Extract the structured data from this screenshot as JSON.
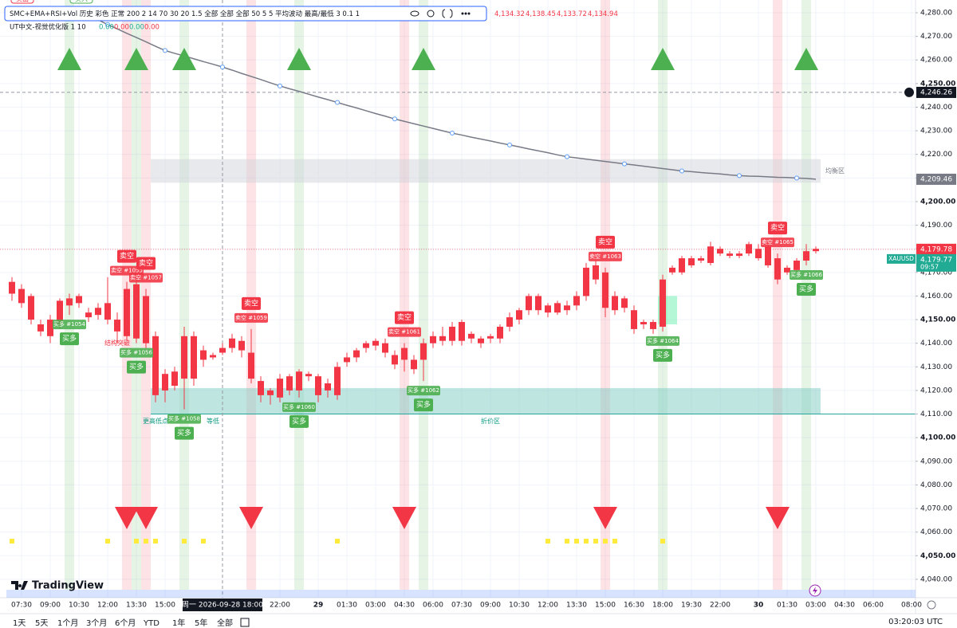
{
  "top_badges": {
    "sell": "卖出",
    "buy": "买入"
  },
  "legend": {
    "indicator": "SMC+EMA+RSI+Vol 历史 彩色 正常 200 2 14 70 30 20 1.5 全部 全部 全部 50 5 5 平均波动 最高/最低 3 0.1 1",
    "ohlc": [
      "4,134.32",
      "4,138.45",
      "4,133.72",
      "4,134.94"
    ],
    "indicator2": "UT中文-视觉优化版 1 10",
    "values2": [
      "0.00",
      "0.00",
      "0.00",
      "0.00"
    ]
  },
  "logo": "TradingView",
  "toolbar": {
    "ranges": [
      "1天",
      "5天",
      "1个月",
      "3个月",
      "6个月",
      "YTD",
      "1年",
      "5年",
      "全部"
    ],
    "clock": "03:20:03 UTC"
  },
  "chart_data": {
    "type": "candlestick",
    "color": "#f23645",
    "grid": true,
    "categories": [
      null,
      "07:30",
      null,
      null,
      "09:00",
      null,
      null,
      "10:30",
      null,
      null,
      "12:00",
      null,
      null,
      "13:30",
      null,
      null,
      "15:00",
      null,
      null,
      null,
      null,
      null,
      null,
      null,
      null,
      null,
      null,
      null,
      "22:00",
      null,
      null,
      null,
      "29",
      null,
      null,
      "01:30",
      null,
      null,
      "03:00",
      null,
      null,
      "04:30",
      null,
      null,
      "06:00",
      null,
      null,
      "07:30",
      null,
      null,
      "09:00",
      null,
      null,
      "10:30",
      null,
      null,
      "12:00",
      null,
      null,
      "13:30",
      null,
      null,
      "15:00",
      null,
      null,
      "16:30",
      null,
      null,
      "18:00",
      null,
      null,
      "19:30",
      null,
      null,
      "22:00",
      null,
      null,
      null,
      "30",
      null,
      null,
      "01:30",
      null,
      null,
      "03:00",
      null,
      null,
      "04:30",
      null,
      null,
      "06:00",
      null,
      null,
      null,
      "08:00"
    ],
    "candles": [
      [
        4166,
        4168,
        4158,
        4161
      ],
      [
        4163,
        4165,
        4155,
        4157
      ],
      [
        4160,
        4161,
        4148,
        4150
      ],
      [
        4148,
        4150,
        4143,
        4145
      ],
      [
        4150,
        4152,
        4140,
        4143
      ],
      [
        4158,
        4159,
        4146,
        4148
      ],
      [
        4159,
        4161,
        4152,
        4156
      ],
      [
        4160,
        4161,
        4155,
        4157
      ],
      [
        4153,
        4155,
        4149,
        4151
      ],
      [
        4155,
        4157,
        4150,
        4152
      ],
      [
        4157,
        4168,
        4148,
        4150
      ],
      [
        4150,
        4153,
        4140,
        4145
      ],
      [
        4163,
        4166,
        4141,
        4143
      ],
      [
        4165,
        4168,
        4140,
        4142
      ],
      [
        4160,
        4163,
        4138,
        4140
      ],
      [
        4143,
        4145,
        4115,
        4118
      ],
      [
        4127,
        4129,
        4115,
        4120
      ],
      [
        4128,
        4130,
        4120,
        4122
      ],
      [
        4143,
        4147,
        4112,
        4125
      ],
      [
        4143,
        4145,
        4122,
        4125
      ],
      [
        4137,
        4139,
        4130,
        4133
      ],
      [
        4135,
        4136,
        4133,
        4134
      ],
      [
        4138,
        4140,
        4135,
        4136
      ],
      [
        4142,
        4144,
        4136,
        4138
      ],
      [
        4141,
        4143,
        4134,
        4137
      ],
      [
        4136,
        4146,
        4123,
        4125
      ],
      [
        4124,
        4126,
        4115,
        4118
      ],
      [
        4120,
        4121,
        4114,
        4118
      ],
      [
        4125,
        4127,
        4115,
        4117
      ],
      [
        4126,
        4127,
        4118,
        4120
      ],
      [
        4128,
        4129,
        4117,
        4120
      ],
      [
        4127,
        4128,
        4124,
        4126
      ],
      [
        4126,
        4127,
        4115,
        4118
      ],
      [
        4123,
        4125,
        4117,
        4120
      ],
      [
        4130,
        4132,
        4116,
        4118
      ],
      [
        4134,
        4136,
        4130,
        4132
      ],
      [
        4137,
        4138,
        4132,
        4134
      ],
      [
        4140,
        4141,
        4136,
        4138
      ],
      [
        4141,
        4142,
        4137,
        4139
      ],
      [
        4140,
        4142,
        4134,
        4136
      ],
      [
        4135,
        4137,
        4129,
        4131
      ],
      [
        4138,
        4140,
        4128,
        4133
      ],
      [
        4133,
        4135,
        4127,
        4129
      ],
      [
        4140,
        4142,
        4124,
        4133
      ],
      [
        4143,
        4145,
        4138,
        4140
      ],
      [
        4143,
        4147,
        4139,
        4141
      ],
      [
        4147,
        4149,
        4139,
        4141
      ],
      [
        4149,
        4150,
        4139,
        4141
      ],
      [
        4144,
        4145,
        4140,
        4142
      ],
      [
        4142,
        4143,
        4138,
        4140
      ],
      [
        4143,
        4144,
        4140,
        4142
      ],
      [
        4147,
        4148,
        4140,
        4142
      ],
      [
        4151,
        4153,
        4145,
        4147
      ],
      [
        4154,
        4155,
        4148,
        4150
      ],
      [
        4160,
        4161,
        4152,
        4154
      ],
      [
        4160,
        4161,
        4152,
        4154
      ],
      [
        4156,
        4157,
        4151,
        4153
      ],
      [
        4157,
        4158,
        4152,
        4153
      ],
      [
        4156,
        4158,
        4152,
        4154
      ],
      [
        4160,
        4162,
        4154,
        4156
      ],
      [
        4172,
        4174,
        4158,
        4160
      ],
      [
        4173,
        4175,
        4165,
        4167
      ],
      [
        4170,
        4172,
        4151,
        4155
      ],
      [
        4160,
        4162,
        4152,
        4154
      ],
      [
        4159,
        4160,
        4153,
        4155
      ],
      [
        4154,
        4156,
        4144,
        4146
      ],
      [
        4149,
        4150,
        4146,
        4148
      ],
      [
        4149,
        4150,
        4144,
        4146
      ],
      [
        4167,
        4169,
        4145,
        4147
      ],
      [
        4172,
        4173,
        4169,
        4170
      ],
      [
        4176,
        4177,
        4169,
        4170
      ],
      [
        4176,
        4177,
        4172,
        4173
      ],
      [
        4176,
        4177,
        4174,
        4175
      ],
      [
        4181,
        4183,
        4173,
        4174
      ],
      [
        4180,
        4181,
        4177,
        4178
      ],
      [
        4178,
        4179,
        4176,
        4177
      ],
      [
        4178,
        4179,
        4176,
        4177
      ],
      [
        4182,
        4183,
        4177,
        4178
      ],
      [
        4180,
        4182,
        4175,
        4176
      ],
      [
        4181,
        4183,
        4172,
        4173
      ],
      [
        4176,
        4178,
        4165,
        4167
      ],
      [
        4172,
        4173,
        4169,
        4170
      ],
      [
        4175,
        4176,
        4170,
        4171
      ],
      [
        4179,
        4182,
        4173,
        4175
      ],
      [
        4180,
        4181,
        4178,
        4179
      ],
      null,
      null,
      null,
      null,
      null,
      null,
      null,
      null,
      null,
      null
    ],
    "ema": {
      "color": "#787b86",
      "values": [
        null,
        null,
        null,
        null,
        null,
        null,
        null,
        null,
        null,
        4277,
        4275,
        4273.2,
        4271.3,
        4269.5,
        4267.7,
        4265.8,
        4264,
        4262.8,
        4261.7,
        4260.5,
        4259.3,
        4258.2,
        4257,
        4255.7,
        4254.3,
        4253,
        4251.7,
        4250.3,
        4249,
        4247.8,
        4246.7,
        4245.5,
        4244.3,
        4243.2,
        4242,
        4240.8,
        4239.7,
        4238.5,
        4237.3,
        4236.2,
        4235,
        4234,
        4233,
        4232,
        4231,
        4230,
        4229,
        4228.2,
        4227.3,
        4226.5,
        4225.7,
        4224.8,
        4224,
        4223.2,
        4222.3,
        4221.5,
        4220.7,
        4219.8,
        4219,
        4218.5,
        4218,
        4217.5,
        4217,
        4216.5,
        4216,
        4215.5,
        4215,
        4214.5,
        4214,
        4213.5,
        4213,
        4212.7,
        4212.3,
        4212,
        4211.7,
        4211.3,
        4211,
        4210.8,
        4210.7,
        4210.5,
        4210.3,
        4210.2,
        4210,
        4209.8,
        4209.5,
        null,
        null,
        null,
        null,
        null,
        null,
        null,
        null,
        null,
        null
      ]
    },
    "ylim": [
      4032.2,
      4285.4
    ],
    "yticks": [
      {
        "value": 4040,
        "label": "4,040.00"
      },
      {
        "value": 4050,
        "label": "4,050.00"
      },
      {
        "value": 4060,
        "label": "4,060.00"
      },
      {
        "value": 4070,
        "label": "4,070.00"
      },
      {
        "value": 4080,
        "label": "4,080.00"
      },
      {
        "value": 4090,
        "label": "4,090.00"
      },
      {
        "value": 4100,
        "label": "4,100.00"
      },
      {
        "value": 4110,
        "label": "4,110.00"
      },
      {
        "value": 4120,
        "label": "4,120.00"
      },
      {
        "value": 4130,
        "label": "4,130.00"
      },
      {
        "value": 4140,
        "label": "4,140.00"
      },
      {
        "value": 4150,
        "label": "4,150.00"
      },
      {
        "value": 4160,
        "label": "4,160.00"
      },
      {
        "value": 4170,
        "label": "4,170.00"
      },
      {
        "value": 4180,
        "label": "4,180.00"
      },
      {
        "value": 4190,
        "label": "4,190.00"
      },
      {
        "value": 4200,
        "label": "4,200.00"
      },
      {
        "value": 4210,
        "label": "4,210.00"
      },
      {
        "value": 4220,
        "label": "4,220.00"
      },
      {
        "value": 4230,
        "label": "4,230.00"
      },
      {
        "value": 4240,
        "label": "4,240.00"
      },
      {
        "value": 4250,
        "label": "4,250.00"
      },
      {
        "value": 4260,
        "label": "4,260.00"
      },
      {
        "value": 4270,
        "label": "4,270.00"
      },
      {
        "value": 4280,
        "label": "4,280.00"
      }
    ],
    "buy_color": "#4caf50",
    "sell_color": "#f23645",
    "signals": [
      {
        "side": "buy",
        "index": 6,
        "label": "买多",
        "tag": "买多 #1054"
      },
      {
        "side": "sell",
        "index": 12,
        "label": "卖空",
        "tag": "卖空 #1055"
      },
      {
        "side": "buy",
        "index": 13,
        "label": "买多",
        "tag": "买多 #1056"
      },
      {
        "side": "sell",
        "index": 14,
        "label": "卖空",
        "tag": "卖空 #1057"
      },
      {
        "side": "buy",
        "index": 18,
        "label": "买多",
        "tag": "买多 #1058"
      },
      {
        "side": "sell",
        "index": 25,
        "label": "卖空",
        "tag": "卖空 #1059"
      },
      {
        "side": "buy",
        "index": 30,
        "label": "买多",
        "tag": "买多 #1060"
      },
      {
        "side": "sell",
        "index": 41,
        "label": "卖空",
        "tag": "卖空 #1061"
      },
      {
        "side": "buy",
        "index": 43,
        "label": "买多",
        "tag": "买多 #1062"
      },
      {
        "side": "sell",
        "index": 62,
        "label": "卖空",
        "tag": "卖空 #1063"
      },
      {
        "side": "buy",
        "index": 68,
        "label": "买多",
        "tag": "买多 #1064"
      },
      {
        "side": "sell",
        "index": 80,
        "label": "卖空",
        "tag": "卖空 #1065"
      },
      {
        "side": "buy",
        "index": 83,
        "label": "买多",
        "tag": "买多 #1066"
      }
    ],
    "zones": [
      {
        "start": 15,
        "end": 84,
        "top": 4218,
        "bottom": 4208,
        "color": "#d1d4dc"
      },
      {
        "start": 15,
        "end": 84,
        "top": 4121,
        "bottom": 4110,
        "color": "#80cbc4",
        "extend_right": true
      },
      {
        "start": 68,
        "end": 69,
        "top": 4160,
        "bottom": 4148,
        "color": "#69f0ae"
      }
    ],
    "annotations": [
      {
        "text": "结构突破",
        "index": 11,
        "price": 4140,
        "color": "#f23645"
      },
      {
        "text": "更高低点",
        "index": 15,
        "price": 4107,
        "color": "#089981"
      },
      {
        "text": "等低",
        "index": 21,
        "price": 4107,
        "color": "#089981"
      },
      {
        "text": "折价区",
        "index": 50,
        "price": 4107,
        "color": "#089981"
      },
      {
        "text": "均衡区",
        "index": 86,
        "price": 4213,
        "color": "#787b86"
      }
    ],
    "flags": {
      "color": "#ffeb3b",
      "indices": [
        0,
        10,
        13,
        14,
        15,
        18,
        20,
        34,
        56,
        58,
        59,
        60,
        61,
        62,
        63,
        68
      ]
    },
    "crosshair": {
      "index": 22,
      "price": 4246.26,
      "price_label": "4,246.26",
      "date_label": "周一 2026-09-28 18:00"
    },
    "price_labels": [
      {
        "value": 4209.46,
        "label": "4,209.46",
        "color": "#787b86"
      },
      {
        "value": 4179.78,
        "label": "4,179.78",
        "color": "#f23645"
      }
    ],
    "symbol_label": {
      "symbol": "XAUUSD",
      "value": 4179.77,
      "label": "4,179.77",
      "countdown": "09:57",
      "color": "#22ab94"
    }
  }
}
